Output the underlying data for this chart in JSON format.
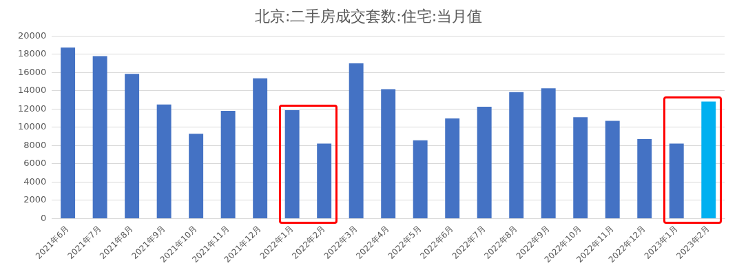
{
  "chart_data": {
    "type": "bar",
    "title": "北京:二手房成交套数:住宅:当月值",
    "categories": [
      "2021年6月",
      "2021年7月",
      "2021年8月",
      "2021年9月",
      "2021年10月",
      "2021年11月",
      "2021年12月",
      "2022年1月",
      "2022年2月",
      "2022年3月",
      "2022年4月",
      "2022年5月",
      "2022年6月",
      "2022年7月",
      "2022年8月",
      "2022年9月",
      "2022年10月",
      "2022年11月",
      "2022年12月",
      "2023年1月",
      "2023年2月"
    ],
    "values": [
      18750,
      17800,
      15870,
      12510,
      9290,
      11800,
      15380,
      11880,
      8230,
      17010,
      14190,
      8580,
      10970,
      12250,
      13870,
      14270,
      11110,
      10710,
      8720,
      8230,
      12820
    ],
    "colors": [
      "#4472c4",
      "#4472c4",
      "#4472c4",
      "#4472c4",
      "#4472c4",
      "#4472c4",
      "#4472c4",
      "#4472c4",
      "#4472c4",
      "#4472c4",
      "#4472c4",
      "#4472c4",
      "#4472c4",
      "#4472c4",
      "#4472c4",
      "#4472c4",
      "#4472c4",
      "#4472c4",
      "#4472c4",
      "#4472c4",
      "#00b0f0"
    ],
    "ylim": [
      0,
      20000
    ],
    "yticks": [
      0,
      2000,
      4000,
      6000,
      8000,
      10000,
      12000,
      14000,
      16000,
      18000,
      20000
    ],
    "grid": "y",
    "legend": false
  }
}
